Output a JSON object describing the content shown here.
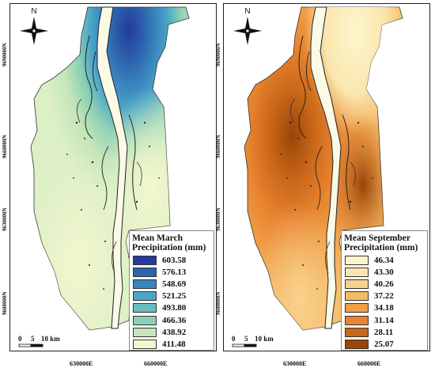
{
  "maps": {
    "left": {
      "north_label": "N",
      "legend_title_line1": "Mean March",
      "legend_title_line2": "Precipitation (mm)",
      "legend": [
        {
          "value": "603.58",
          "color": "#253a9a"
        },
        {
          "value": "576.13",
          "color": "#2c63ad"
        },
        {
          "value": "548.69",
          "color": "#3a85be"
        },
        {
          "value": "521.25",
          "color": "#4aa7c8"
        },
        {
          "value": "493.80",
          "color": "#65bfc2"
        },
        {
          "value": "466.36",
          "color": "#8dd0b4"
        },
        {
          "value": "438.92",
          "color": "#c6e6ba"
        },
        {
          "value": "411.48",
          "color": "#f3f7cf"
        }
      ],
      "scale": {
        "s0": "0",
        "s5": "5",
        "s10": "10 km"
      }
    },
    "right": {
      "north_label": "N",
      "legend_title_line1": "Mean September",
      "legend_title_line2": "Precipitation (mm)",
      "legend": [
        {
          "value": "46.34",
          "color": "#fdf6cd"
        },
        {
          "value": "43.30",
          "color": "#fae6ad"
        },
        {
          "value": "40.26",
          "color": "#f8d28c"
        },
        {
          "value": "37.22",
          "color": "#f6bb66"
        },
        {
          "value": "34.18",
          "color": "#f1a04a"
        },
        {
          "value": "31.14",
          "color": "#e8842f"
        },
        {
          "value": "28.11",
          "color": "#c96618"
        },
        {
          "value": "25.07",
          "color": "#9a4508"
        }
      ],
      "scale": {
        "s0": "0",
        "s5": "5",
        "s10": "10 km"
      }
    },
    "y_ticks": [
      "9690000N",
      "9660000N",
      "9630000N",
      "9600000N"
    ],
    "x_ticks": [
      "630000E",
      "660000E"
    ]
  }
}
